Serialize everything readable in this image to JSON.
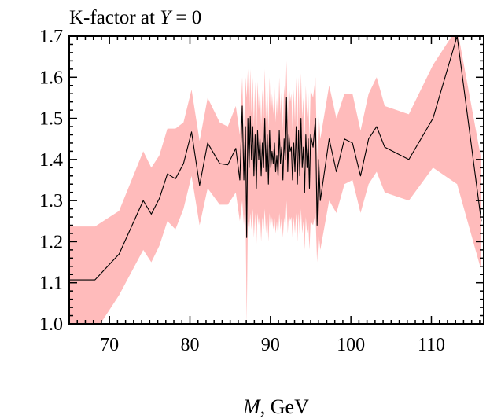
{
  "chart_data": {
    "type": "line",
    "title_text": "K-factor at ",
    "title_var": "Y",
    "title_eq": " = 0",
    "xlabel_var": "M",
    "xlabel_unit": ", GeV",
    "ylabel": "",
    "xlim": [
      65,
      116.5
    ],
    "ylim": [
      1.0,
      1.7
    ],
    "x_ticks": [
      70,
      80,
      90,
      100,
      110
    ],
    "y_ticks": [
      1.0,
      1.1,
      1.2,
      1.3,
      1.4,
      1.5,
      1.6,
      1.7
    ],
    "x_tick_labels": [
      "70",
      "80",
      "90",
      "100",
      "110"
    ],
    "y_tick_labels": [
      "1.0",
      "1.1",
      "1.2",
      "1.3",
      "1.4",
      "1.5",
      "1.6",
      "1.7"
    ],
    "grid": false,
    "colors": {
      "line": "#000000",
      "band": "#ffbbbb"
    },
    "series": [
      {
        "x": [
          65.0,
          68.2,
          71.2,
          74.2,
          75.2,
          76.2,
          77.2,
          78.2,
          79.2,
          80.2,
          81.2,
          82.2,
          83.7,
          84.7,
          85.7,
          86.2,
          86.5,
          86.7,
          86.9,
          87.05,
          87.2,
          87.35,
          87.5,
          87.65,
          87.8,
          87.95,
          88.1,
          88.25,
          88.4,
          88.55,
          88.7,
          88.85,
          89.0,
          89.15,
          89.3,
          89.45,
          89.6,
          89.75,
          89.9,
          90.05,
          90.2,
          90.35,
          90.5,
          90.65,
          90.8,
          90.95,
          91.1,
          91.25,
          91.4,
          91.55,
          91.7,
          91.85,
          92.0,
          92.15,
          92.3,
          92.45,
          92.6,
          92.75,
          92.9,
          93.05,
          93.2,
          93.35,
          93.5,
          93.65,
          93.8,
          93.95,
          94.1,
          94.25,
          94.4,
          94.55,
          94.7,
          94.85,
          95.0,
          95.3,
          95.6,
          95.8,
          96.0,
          96.2,
          97.3,
          98.2,
          99.2,
          100.2,
          101.2,
          102.2,
          103.2,
          104.2,
          107.2,
          110.2,
          113.2,
          116.2
        ],
        "y": [
          1.107,
          1.107,
          1.17,
          1.3,
          1.267,
          1.305,
          1.365,
          1.353,
          1.39,
          1.467,
          1.337,
          1.44,
          1.39,
          1.387,
          1.427,
          1.35,
          1.53,
          1.35,
          1.48,
          1.21,
          1.5,
          1.38,
          1.505,
          1.4,
          1.48,
          1.36,
          1.46,
          1.33,
          1.47,
          1.4,
          1.45,
          1.36,
          1.44,
          1.38,
          1.5,
          1.37,
          1.46,
          1.34,
          1.47,
          1.38,
          1.42,
          1.39,
          1.44,
          1.37,
          1.41,
          1.36,
          1.47,
          1.39,
          1.43,
          1.35,
          1.45,
          1.4,
          1.55,
          1.37,
          1.46,
          1.42,
          1.43,
          1.35,
          1.44,
          1.37,
          1.48,
          1.34,
          1.47,
          1.36,
          1.5,
          1.38,
          1.43,
          1.32,
          1.46,
          1.38,
          1.45,
          1.33,
          1.46,
          1.43,
          1.5,
          1.24,
          1.4,
          1.3,
          1.45,
          1.37,
          1.45,
          1.44,
          1.36,
          1.45,
          1.48,
          1.43,
          1.4,
          1.5,
          1.7,
          1.25
        ],
        "lower": [
          0.98,
          0.98,
          1.07,
          1.18,
          1.15,
          1.19,
          1.25,
          1.23,
          1.28,
          1.36,
          1.24,
          1.33,
          1.29,
          1.29,
          1.32,
          1.25,
          1.3,
          1.24,
          1.3,
          1.0,
          1.25,
          1.22,
          1.27,
          1.23,
          1.28,
          1.21,
          1.27,
          1.19,
          1.27,
          1.24,
          1.27,
          1.2,
          1.26,
          1.23,
          1.28,
          1.22,
          1.27,
          1.2,
          1.27,
          1.23,
          1.26,
          1.23,
          1.26,
          1.22,
          1.25,
          1.21,
          1.27,
          1.23,
          1.26,
          1.21,
          1.26,
          1.23,
          1.3,
          1.22,
          1.27,
          1.25,
          1.26,
          1.21,
          1.26,
          1.22,
          1.27,
          1.2,
          1.27,
          1.21,
          1.28,
          1.22,
          1.25,
          1.18,
          1.26,
          1.22,
          1.25,
          1.18,
          1.25,
          1.24,
          1.27,
          1.15,
          1.22,
          1.18,
          1.3,
          1.27,
          1.34,
          1.35,
          1.27,
          1.34,
          1.37,
          1.32,
          1.3,
          1.38,
          1.34,
          1.13
        ],
        "upper": [
          1.237,
          1.237,
          1.275,
          1.42,
          1.38,
          1.41,
          1.475,
          1.475,
          1.49,
          1.57,
          1.445,
          1.55,
          1.49,
          1.48,
          1.53,
          1.46,
          1.6,
          1.46,
          1.6,
          1.55,
          1.62,
          1.5,
          1.62,
          1.51,
          1.6,
          1.48,
          1.59,
          1.46,
          1.59,
          1.52,
          1.58,
          1.48,
          1.57,
          1.5,
          1.62,
          1.49,
          1.59,
          1.47,
          1.6,
          1.5,
          1.56,
          1.51,
          1.58,
          1.49,
          1.55,
          1.48,
          1.6,
          1.51,
          1.57,
          1.47,
          1.58,
          1.53,
          1.64,
          1.49,
          1.59,
          1.54,
          1.56,
          1.47,
          1.57,
          1.49,
          1.6,
          1.46,
          1.6,
          1.48,
          1.61,
          1.5,
          1.55,
          1.45,
          1.58,
          1.5,
          1.57,
          1.45,
          1.57,
          1.55,
          1.6,
          1.4,
          1.52,
          1.45,
          1.58,
          1.5,
          1.56,
          1.56,
          1.47,
          1.56,
          1.6,
          1.53,
          1.51,
          1.63,
          1.72,
          1.4
        ]
      }
    ]
  }
}
